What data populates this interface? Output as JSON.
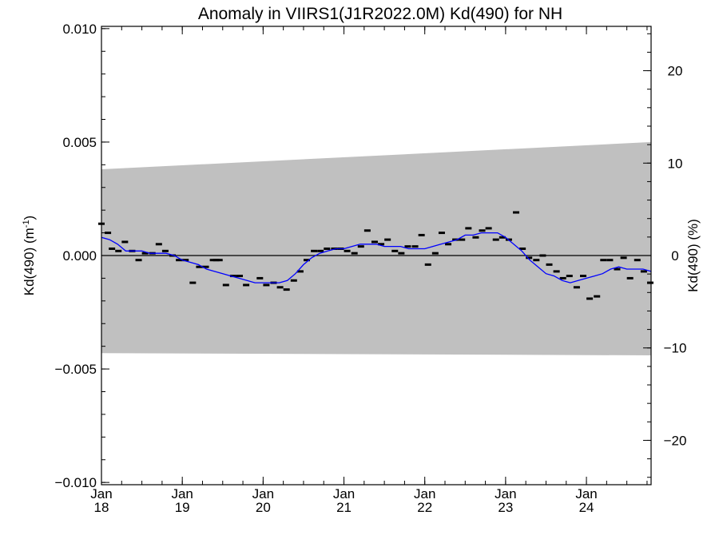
{
  "chart_data": {
    "type": "scatter",
    "title": "Anomaly in VIIRS1(J1R2022.0M) Kd(490) for NH",
    "ylabel_left": "Kd(490) (m",
    "ylabel_left_sup": "-1",
    "ylabel_left_close": ")",
    "ylabel_right": "Kd(490) (%)",
    "xlim": [
      2018.0,
      2024.8
    ],
    "ylim_left": [
      -0.0101,
      0.0101
    ],
    "ylim_right": [
      -24.8,
      24.8
    ],
    "grid": false,
    "x_ticks": [
      {
        "x": 2018,
        "line1": "Jan",
        "line2": "18"
      },
      {
        "x": 2019,
        "line1": "Jan",
        "line2": "19"
      },
      {
        "x": 2020,
        "line1": "Jan",
        "line2": "20"
      },
      {
        "x": 2021,
        "line1": "Jan",
        "line2": "21"
      },
      {
        "x": 2022,
        "line1": "Jan",
        "line2": "22"
      },
      {
        "x": 2023,
        "line1": "Jan",
        "line2": "23"
      },
      {
        "x": 2024,
        "line1": "Jan",
        "line2": "24"
      }
    ],
    "y_left_ticks": [
      {
        "v": 0.01,
        "label": "0.010"
      },
      {
        "v": 0.005,
        "label": "0.005"
      },
      {
        "v": 0.0,
        "label": "0.000"
      },
      {
        "v": -0.005,
        "label": "−0.005"
      },
      {
        "v": -0.01,
        "label": "−0.010"
      }
    ],
    "y_right_ticks": [
      {
        "v": 20,
        "label": "20"
      },
      {
        "v": 10,
        "label": "10"
      },
      {
        "v": 0,
        "label": "0"
      },
      {
        "v": -10,
        "label": "−10"
      },
      {
        "v": -20,
        "label": "−20"
      }
    ],
    "band": {
      "x": [
        2018.0,
        2024.8
      ],
      "upper": [
        0.0038,
        0.005
      ],
      "lower": [
        -0.0043,
        -0.0044
      ],
      "color": "#c0c0c0"
    },
    "zero_line": 0,
    "series": [
      {
        "kind": "monthly_anomaly",
        "color": "#000000",
        "x": [
          2018.0,
          2018.08,
          2018.13,
          2018.21,
          2018.29,
          2018.38,
          2018.46,
          2018.54,
          2018.63,
          2018.71,
          2018.79,
          2018.88,
          2018.96,
          2019.04,
          2019.13,
          2019.21,
          2019.29,
          2019.38,
          2019.42,
          2019.46,
          2019.54,
          2019.63,
          2019.71,
          2019.79,
          2019.96,
          2020.04,
          2020.13,
          2020.21,
          2020.29,
          2020.38,
          2020.46,
          2020.54,
          2020.63,
          2020.71,
          2020.79,
          2020.88,
          2020.96,
          2021.04,
          2021.13,
          2021.21,
          2021.29,
          2021.38,
          2021.46,
          2021.54,
          2021.63,
          2021.71,
          2021.79,
          2021.88,
          2021.96,
          2022.04,
          2022.13,
          2022.21,
          2022.29,
          2022.38,
          2022.46,
          2022.54,
          2022.63,
          2022.71,
          2022.79,
          2022.88,
          2022.96,
          2023.04,
          2023.13,
          2023.21,
          2023.29,
          2023.38,
          2023.46,
          2023.54,
          2023.63,
          2023.71,
          2023.79,
          2023.88,
          2023.96,
          2024.04,
          2024.13,
          2024.21,
          2024.29,
          2024.38,
          2024.46,
          2024.54,
          2024.63,
          2024.71,
          2024.79
        ],
        "y": [
          0.0014,
          0.001,
          0.0003,
          0.0002,
          0.0006,
          0.0002,
          -0.0002,
          0.0001,
          0.0001,
          0.0005,
          0.0002,
          0.0,
          -0.0002,
          -0.0002,
          -0.0012,
          -0.0005,
          -0.0005,
          -0.0002,
          -0.0002,
          -0.0002,
          -0.0013,
          -0.0009,
          -0.0009,
          -0.0013,
          -0.001,
          -0.0013,
          -0.0012,
          -0.0014,
          -0.0015,
          -0.0011,
          -0.0007,
          -0.0002,
          0.0002,
          0.0002,
          0.0003,
          0.0003,
          0.0003,
          0.0002,
          0.0001,
          0.0004,
          0.0011,
          0.0006,
          0.0005,
          0.0007,
          0.0002,
          0.0001,
          0.0004,
          0.0004,
          0.0009,
          -0.0004,
          0.0001,
          0.001,
          0.0005,
          0.0007,
          0.0007,
          0.0012,
          0.0008,
          0.0011,
          0.0012,
          0.0007,
          0.0008,
          0.0007,
          0.0019,
          0.0003,
          -0.0001,
          -0.0002,
          0.0,
          -0.0004,
          -0.0007,
          -0.001,
          -0.0009,
          -0.0014,
          -0.0009,
          -0.0019,
          -0.0018,
          -0.0002,
          -0.0002,
          -0.0006,
          -0.0001,
          -0.001,
          -0.0002,
          -0.0007,
          -0.0012
        ]
      },
      {
        "kind": "running_mean",
        "color": "#0000ff",
        "x": [
          2018.0,
          2018.1,
          2018.2,
          2018.3,
          2018.4,
          2018.5,
          2018.6,
          2018.7,
          2018.8,
          2018.9,
          2019.0,
          2019.1,
          2019.2,
          2019.3,
          2019.4,
          2019.5,
          2019.6,
          2019.7,
          2019.8,
          2019.9,
          2020.0,
          2020.1,
          2020.2,
          2020.3,
          2020.4,
          2020.5,
          2020.6,
          2020.7,
          2020.8,
          2020.9,
          2021.0,
          2021.1,
          2021.2,
          2021.3,
          2021.4,
          2021.5,
          2021.6,
          2021.7,
          2021.8,
          2021.9,
          2022.0,
          2022.1,
          2022.2,
          2022.3,
          2022.4,
          2022.5,
          2022.6,
          2022.7,
          2022.8,
          2022.9,
          2023.0,
          2023.1,
          2023.2,
          2023.3,
          2023.4,
          2023.5,
          2023.6,
          2023.7,
          2023.8,
          2023.9,
          2024.0,
          2024.1,
          2024.2,
          2024.3,
          2024.4,
          2024.5,
          2024.6,
          2024.7,
          2024.8
        ],
        "y": [
          0.0008,
          0.0007,
          0.0005,
          0.0002,
          0.0002,
          0.0002,
          0.0001,
          0.0001,
          0.0001,
          0.0,
          -0.0002,
          -0.0003,
          -0.0004,
          -0.0006,
          -0.0007,
          -0.0008,
          -0.0009,
          -0.001,
          -0.0011,
          -0.0012,
          -0.0012,
          -0.0012,
          -0.0012,
          -0.0011,
          -0.0008,
          -0.0004,
          -0.0001,
          0.0001,
          0.0002,
          0.0003,
          0.0003,
          0.0004,
          0.0005,
          0.0005,
          0.0005,
          0.0004,
          0.0004,
          0.0004,
          0.0003,
          0.0003,
          0.0003,
          0.0004,
          0.0005,
          0.0006,
          0.0007,
          0.0009,
          0.0009,
          0.001,
          0.001,
          0.001,
          0.0008,
          0.0005,
          0.0002,
          -0.0002,
          -0.0005,
          -0.0008,
          -0.0009,
          -0.0011,
          -0.0012,
          -0.0011,
          -0.001,
          -0.0009,
          -0.0008,
          -0.0006,
          -0.0005,
          -0.0006,
          -0.0006,
          -0.0006,
          -0.0007
        ]
      }
    ]
  }
}
